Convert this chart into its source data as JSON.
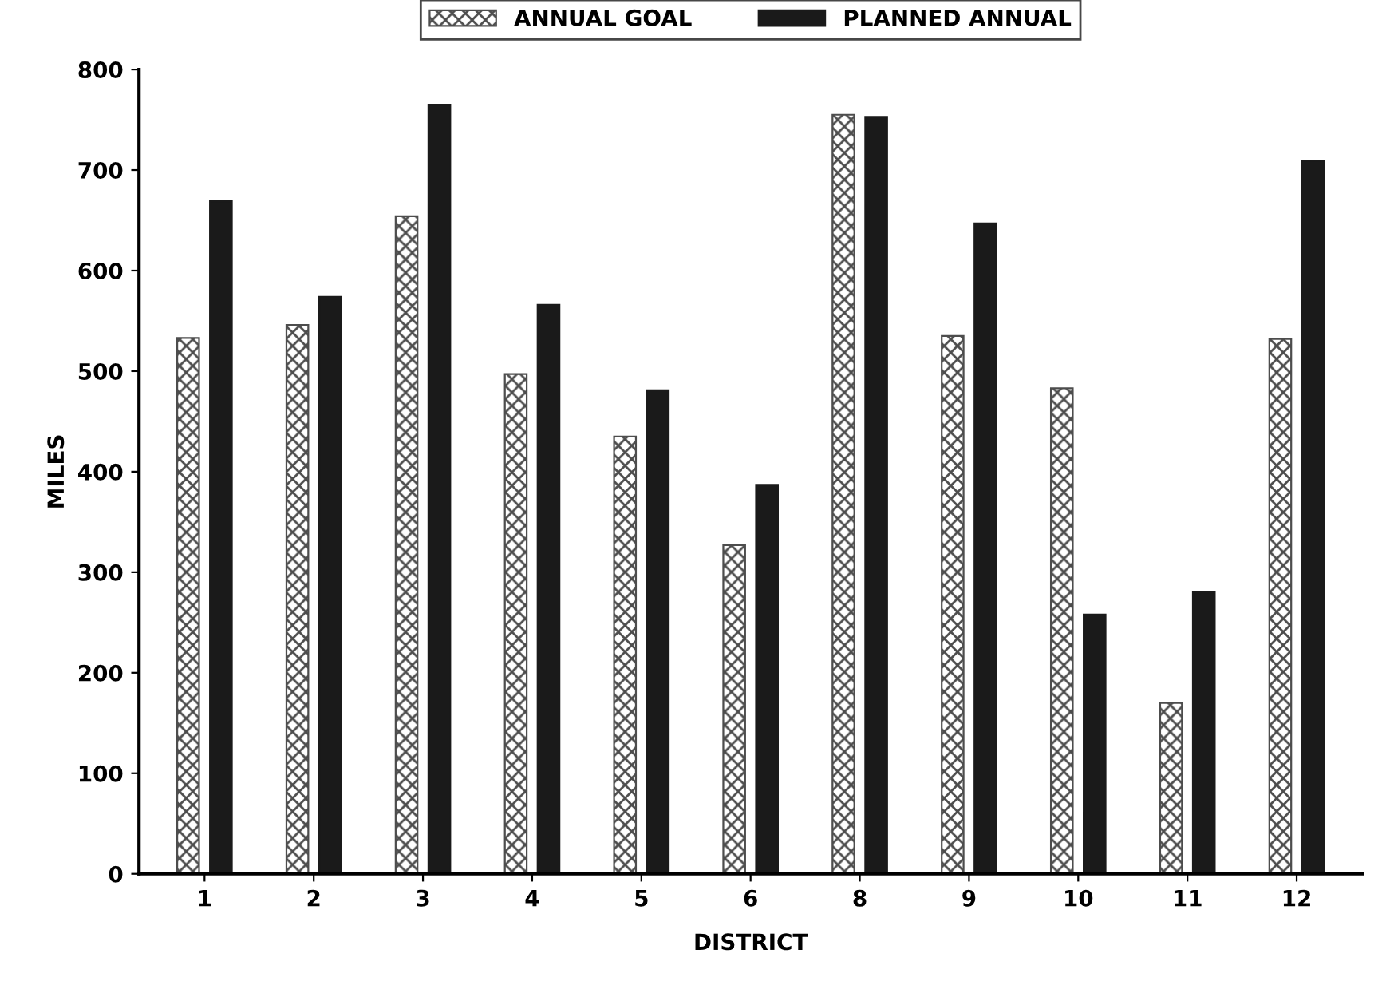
{
  "chart_data": {
    "type": "bar",
    "xlabel": "DISTRICT",
    "ylabel": "MILES",
    "categories": [
      "1",
      "2",
      "3",
      "4",
      "5",
      "6",
      "8",
      "9",
      "10",
      "11",
      "12"
    ],
    "series": [
      {
        "name": "ANNUAL GOAL",
        "color": "#4d4d4d",
        "values": [
          533,
          546,
          654,
          497,
          435,
          327,
          755,
          535,
          483,
          170,
          532
        ]
      },
      {
        "name": "PLANNED ANNUAL",
        "color": "#1a1a1a",
        "values": [
          669,
          574,
          765,
          566,
          481,
          387,
          753,
          647,
          258,
          280,
          709
        ]
      }
    ],
    "ylim": [
      0,
      800
    ],
    "yticks": [
      0,
      100,
      200,
      300,
      400,
      500,
      600,
      700,
      800
    ],
    "grid": false,
    "legend": "top"
  }
}
